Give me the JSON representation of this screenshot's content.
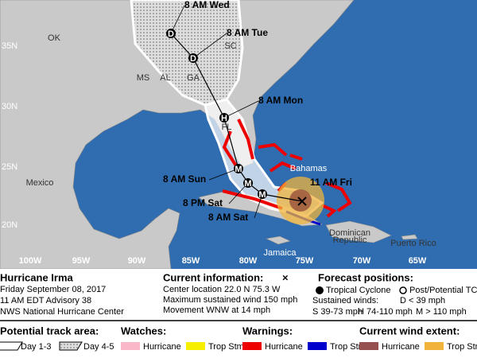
{
  "map": {
    "lat_labels": [
      "35N",
      "30N",
      "25N",
      "20N"
    ],
    "lon_labels": [
      "100W",
      "95W",
      "90W",
      "85W",
      "80W",
      "75W",
      "70W",
      "65W"
    ],
    "places": [
      "OK",
      "MS",
      "AL",
      "GA",
      "SC",
      "FL",
      "Mexico",
      "Bahamas",
      "Jamaica",
      "Dominican",
      "Republic",
      "Puerto Rico"
    ],
    "forecast_points": [
      {
        "time": "8 AM Wed",
        "marker": "D"
      },
      {
        "time": "8 AM Tue",
        "marker": "D"
      },
      {
        "time": "8 AM Mon",
        "marker": "H"
      },
      {
        "time": "8 AM Sun",
        "marker": "M"
      },
      {
        "time": "8 PM Sat",
        "marker": "M"
      },
      {
        "time": "8 AM Sat",
        "marker": "M"
      }
    ],
    "current_time": "11 AM Fri"
  },
  "legend": {
    "storm": [
      "Hurricane Irma",
      "Friday September 08, 2017",
      "11 AM EDT Advisory 38",
      "NWS National Hurricane Center"
    ],
    "current_information": {
      "title": "Current information:",
      "symbol": "×",
      "lines": [
        "Center location 22.0 N 75.3 W",
        "Maximum sustained wind 150 mph",
        "Movement WNW at 14 mph"
      ]
    },
    "forecast_positions": {
      "title": "Forecast positions:",
      "tropical": "Tropical Cyclone",
      "post": "Post/Potential TC",
      "winds_title": "Sustained winds:",
      "d": "D < 39 mph",
      "s": "S 39-73 mph",
      "h": "H 74-110 mph",
      "m": "M > 110 mph"
    },
    "track": {
      "title": "Potential track area:",
      "day13": "Day 1-3",
      "day45": "Day 4-5"
    },
    "watches": {
      "title": "Watches:",
      "hurricane": "Hurricane",
      "trop": "Trop Stm"
    },
    "warnings": {
      "title": "Warnings:",
      "hurricane": "Hurricane",
      "trop": "Trop Stm"
    },
    "wind_extent": {
      "title": "Current wind extent:",
      "hurricane": "Hurricane",
      "trop": "Trop Stm"
    }
  }
}
